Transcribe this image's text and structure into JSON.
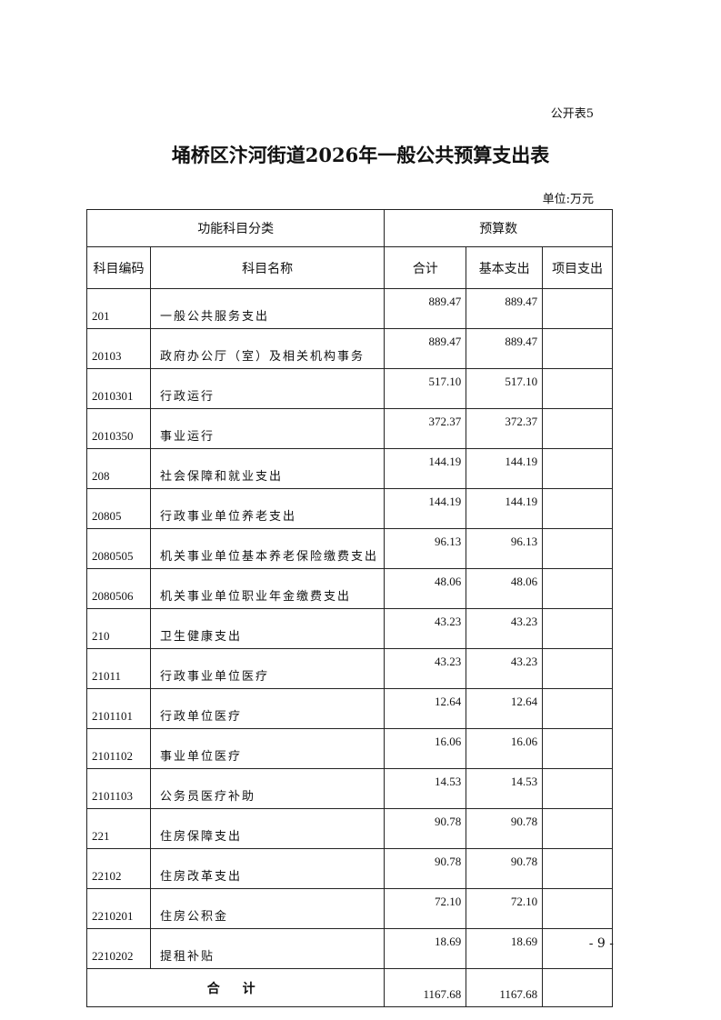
{
  "doc": {
    "tag": "公开表5",
    "title": "埇桥区汴河街道2026年一般公共预算支出表",
    "unit": "单位:万元",
    "page_number": "- 9 -"
  },
  "table": {
    "group_headers": [
      "功能科目分类",
      "预算数"
    ],
    "columns": [
      "科目编码",
      "科目名称",
      "合计",
      "基本支出",
      "项目支出"
    ],
    "rows": [
      {
        "code": "201",
        "name": "一般公共服务支出",
        "total": "889.47",
        "basic": "889.47",
        "project": ""
      },
      {
        "code": "20103",
        "name": "政府办公厅（室）及相关机构事务",
        "total": "889.47",
        "basic": "889.47",
        "project": ""
      },
      {
        "code": "2010301",
        "name": "行政运行",
        "total": "517.10",
        "basic": "517.10",
        "project": ""
      },
      {
        "code": "2010350",
        "name": "事业运行",
        "total": "372.37",
        "basic": "372.37",
        "project": ""
      },
      {
        "code": "208",
        "name": "社会保障和就业支出",
        "total": "144.19",
        "basic": "144.19",
        "project": ""
      },
      {
        "code": "20805",
        "name": "行政事业单位养老支出",
        "total": "144.19",
        "basic": "144.19",
        "project": ""
      },
      {
        "code": "2080505",
        "name": "机关事业单位基本养老保险缴费支出",
        "total": "96.13",
        "basic": "96.13",
        "project": ""
      },
      {
        "code": "2080506",
        "name": "机关事业单位职业年金缴费支出",
        "total": "48.06",
        "basic": "48.06",
        "project": ""
      },
      {
        "code": "210",
        "name": "卫生健康支出",
        "total": "43.23",
        "basic": "43.23",
        "project": ""
      },
      {
        "code": "21011",
        "name": "行政事业单位医疗",
        "total": "43.23",
        "basic": "43.23",
        "project": ""
      },
      {
        "code": "2101101",
        "name": "行政单位医疗",
        "total": "12.64",
        "basic": "12.64",
        "project": ""
      },
      {
        "code": "2101102",
        "name": "事业单位医疗",
        "total": "16.06",
        "basic": "16.06",
        "project": ""
      },
      {
        "code": "2101103",
        "name": "公务员医疗补助",
        "total": "14.53",
        "basic": "14.53",
        "project": ""
      },
      {
        "code": "221",
        "name": "住房保障支出",
        "total": "90.78",
        "basic": "90.78",
        "project": ""
      },
      {
        "code": "22102",
        "name": "住房改革支出",
        "total": "90.78",
        "basic": "90.78",
        "project": ""
      },
      {
        "code": "2210201",
        "name": "住房公积金",
        "total": "72.10",
        "basic": "72.10",
        "project": ""
      },
      {
        "code": "2210202",
        "name": "提租补贴",
        "total": "18.69",
        "basic": "18.69",
        "project": ""
      }
    ],
    "total_row": {
      "label": "合 计",
      "total": "1167.68",
      "basic": "1167.68",
      "project": ""
    }
  }
}
